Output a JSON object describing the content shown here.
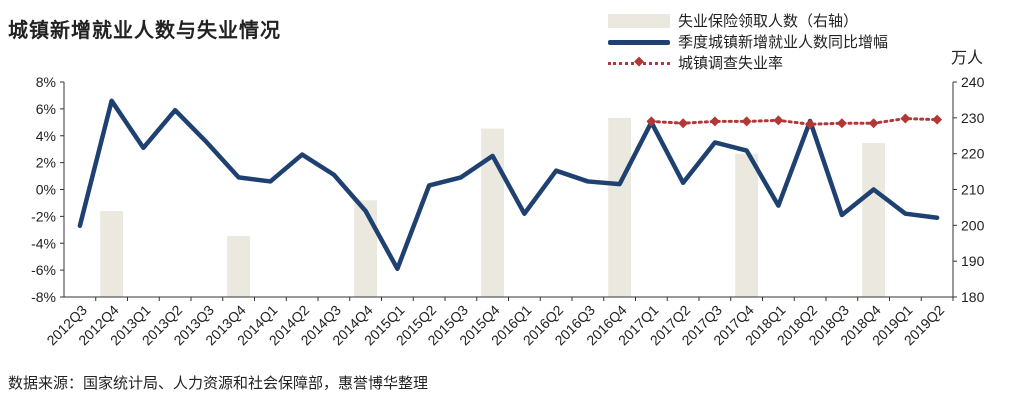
{
  "title": "城镇新增就业人数与失业情况",
  "right_unit": "万人",
  "source": "数据来源：国家统计局、人力资源和社会保障部，惠誉博华整理",
  "colors": {
    "bar": "#ebe9df",
    "line": "#1f4171",
    "dotted": "#b23838"
  },
  "chart_data": {
    "type": "bar+line",
    "title": "城镇新增就业人数与失业情况",
    "legend_position": "top-right",
    "grid": false,
    "categories": [
      "2012Q3",
      "2012Q4",
      "2013Q1",
      "2013Q2",
      "2013Q3",
      "2013Q4",
      "2014Q1",
      "2014Q2",
      "2014Q3",
      "2014Q4",
      "2015Q1",
      "2015Q2",
      "2015Q3",
      "2015Q4",
      "2016Q1",
      "2016Q2",
      "2016Q3",
      "2016Q4",
      "2017Q1",
      "2017Q2",
      "2017Q3",
      "2017Q4",
      "2018Q1",
      "2018Q2",
      "2018Q3",
      "2018Q4",
      "2019Q1",
      "2019Q2"
    ],
    "left_axis": {
      "ticks": [
        "8%",
        "6%",
        "4%",
        "2%",
        "0%",
        "-2%",
        "-4%",
        "-6%",
        "-8%"
      ],
      "ylim": [
        -8,
        8
      ]
    },
    "right_axis": {
      "ticks": [
        "240",
        "230",
        "220",
        "210",
        "200",
        "190",
        "180"
      ],
      "ylim": [
        180,
        240
      ]
    },
    "series": [
      {
        "name": "失业保险领取人数（右轴）",
        "type": "bar",
        "axis": "right",
        "values": [
          null,
          204,
          null,
          null,
          null,
          197,
          null,
          null,
          null,
          207,
          null,
          null,
          null,
          227,
          null,
          null,
          null,
          230,
          null,
          null,
          null,
          220,
          null,
          null,
          null,
          223,
          null,
          null
        ]
      },
      {
        "name": "季度城镇新增就业人数同比增幅",
        "type": "line",
        "axis": "left",
        "values": [
          -2.7,
          6.6,
          3.1,
          5.9,
          3.5,
          0.9,
          0.6,
          2.6,
          1.1,
          -1.6,
          -5.9,
          0.3,
          0.9,
          2.5,
          -1.8,
          1.4,
          0.6,
          0.4,
          5.0,
          0.5,
          3.5,
          2.9,
          -1.2,
          5.1,
          -1.9,
          0.0,
          -1.8,
          -2.1
        ]
      },
      {
        "name": "城镇调查失业率",
        "type": "line-dotted",
        "axis": "right",
        "values": [
          null,
          null,
          null,
          null,
          null,
          null,
          null,
          null,
          null,
          null,
          null,
          null,
          null,
          null,
          null,
          null,
          null,
          null,
          229.0,
          228.5,
          229.0,
          229.0,
          229.3,
          228.2,
          228.5,
          228.5,
          229.8,
          229.5
        ]
      }
    ]
  }
}
